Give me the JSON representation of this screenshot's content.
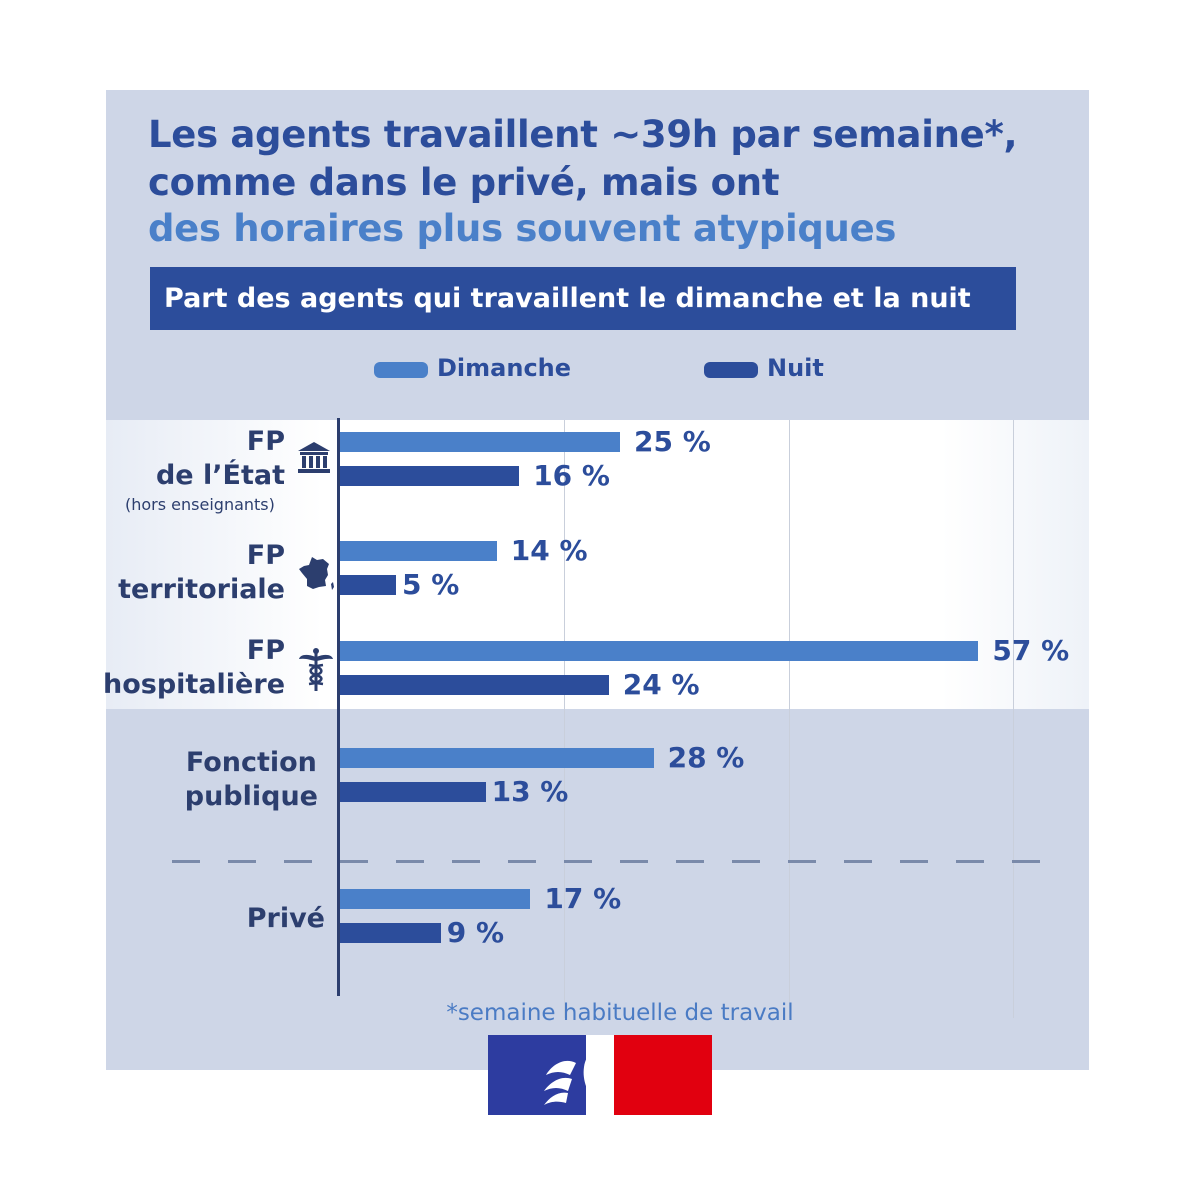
{
  "title": {
    "line1": "Les agents travaillent ~39h par semaine*,",
    "line2": "comme dans le privé, mais ont",
    "line3": "des horaires plus souvent atypiques"
  },
  "subtitle": "Part des agents qui travaillent le dimanche et la nuit",
  "legend": {
    "sunday": "Dimanche",
    "night": "Nuit"
  },
  "footnote": "*semaine habituelle de travail",
  "colors": {
    "sunday": "#4a80c9",
    "night": "#2c4d9b",
    "panel": "#ced6e7",
    "title": "#2c4d9b"
  },
  "icons": [
    "building-icon",
    "france-map-icon",
    "caduceus-icon",
    "marianne-logo"
  ],
  "categories_display": [
    {
      "lines": [
        "FP",
        "de l’État"
      ],
      "note": "(hors enseignants)"
    },
    {
      "lines": [
        "FP",
        "territoriale"
      ],
      "note": ""
    },
    {
      "lines": [
        "FP",
        "hospitalière"
      ],
      "note": ""
    },
    {
      "lines": [
        "Fonction",
        "publique"
      ],
      "note": ""
    },
    {
      "lines": [
        "Privé"
      ],
      "note": ""
    }
  ],
  "chart_data": {
    "type": "bar",
    "orientation": "horizontal",
    "categories": [
      "FP de l’État (hors enseignants)",
      "FP territoriale",
      "FP hospitalière",
      "Fonction publique",
      "Privé"
    ],
    "series": [
      {
        "name": "Dimanche",
        "values": [
          25,
          14,
          57,
          28,
          17
        ]
      },
      {
        "name": "Nuit",
        "values": [
          16,
          5,
          24,
          13,
          9
        ]
      }
    ],
    "value_labels": {
      "Dimanche": [
        "25 %",
        "14 %",
        "57 %",
        "28 %",
        "17 %"
      ],
      "Nuit": [
        "16 %",
        "5 %",
        "24 %",
        "13 %",
        "9 %"
      ]
    },
    "unit": "%",
    "xlim": [
      0,
      60
    ],
    "grid": true,
    "legend": "top"
  }
}
